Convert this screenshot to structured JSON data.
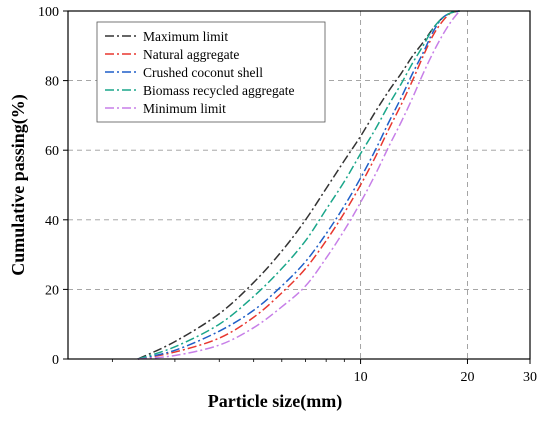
{
  "chart_data": {
    "type": "line",
    "xlabel": "Particle size(mm)",
    "ylabel": "Cumulative passing(%)",
    "xscale": "log",
    "xlim": [
      1.5,
      30
    ],
    "ylim": [
      0,
      100
    ],
    "xticks": [
      10,
      20,
      30
    ],
    "yticks": [
      0,
      20,
      40,
      60,
      80,
      100
    ],
    "grid": "dashed",
    "legend_position": "top-left",
    "line_style": "dash-dot",
    "series": [
      {
        "name": "Maximum limit",
        "color": "#333333",
        "x": [
          2.36,
          3.0,
          4.0,
          5.0,
          6.0,
          7.0,
          8.0,
          9.0,
          10.0,
          11.0,
          12.0,
          13.0,
          14.0,
          15.0,
          16.0,
          17.0,
          18.0,
          19.0
        ],
        "y": [
          0,
          5,
          13,
          22,
          31,
          40,
          49,
          57,
          64,
          71,
          77,
          82,
          87,
          91,
          95,
          98,
          99.5,
          100
        ]
      },
      {
        "name": "Natural aggregate",
        "color": "#e8372e",
        "x": [
          2.36,
          3.0,
          4.0,
          5.0,
          6.0,
          7.0,
          8.0,
          9.0,
          10.0,
          11.0,
          12.0,
          13.0,
          14.0,
          15.0,
          16.0,
          17.0,
          18.0,
          19.0
        ],
        "y": [
          0,
          2,
          6,
          12,
          19,
          26,
          34,
          42,
          50,
          58,
          66,
          73,
          80,
          87,
          93,
          97,
          99.5,
          100
        ]
      },
      {
        "name": "Crushed coconut shell",
        "color": "#1f5fc8",
        "x": [
          2.36,
          3.0,
          4.0,
          5.0,
          6.0,
          7.0,
          8.0,
          9.0,
          10.0,
          11.0,
          12.0,
          13.0,
          14.0,
          15.0,
          16.0,
          17.0,
          18.0,
          19.0
        ],
        "y": [
          0,
          2.5,
          8,
          14,
          21,
          28,
          36,
          44,
          52,
          60,
          68,
          75,
          82,
          88,
          94,
          98,
          99.5,
          100
        ]
      },
      {
        "name": "Biomass recycled aggregate",
        "color": "#1aa68a",
        "x": [
          2.36,
          3.0,
          4.0,
          5.0,
          6.0,
          7.0,
          8.0,
          9.0,
          10.0,
          11.0,
          12.0,
          13.0,
          14.0,
          15.0,
          16.0,
          17.0,
          18.0,
          19.0
        ],
        "y": [
          0,
          3.5,
          10,
          18,
          26,
          34,
          43,
          51,
          59,
          66,
          73,
          79,
          85,
          90,
          95,
          98,
          99.5,
          100
        ]
      },
      {
        "name": "Minimum limit",
        "color": "#c77fe8",
        "x": [
          2.36,
          3.0,
          4.0,
          5.0,
          6.0,
          7.0,
          8.0,
          9.0,
          10.0,
          11.0,
          12.0,
          13.0,
          14.0,
          15.0,
          16.0,
          17.0,
          18.0,
          19.0
        ],
        "y": [
          0,
          1,
          4,
          9,
          15,
          21,
          29,
          37,
          45,
          53,
          61,
          68,
          75,
          82,
          88,
          93,
          97,
          100
        ]
      }
    ]
  }
}
